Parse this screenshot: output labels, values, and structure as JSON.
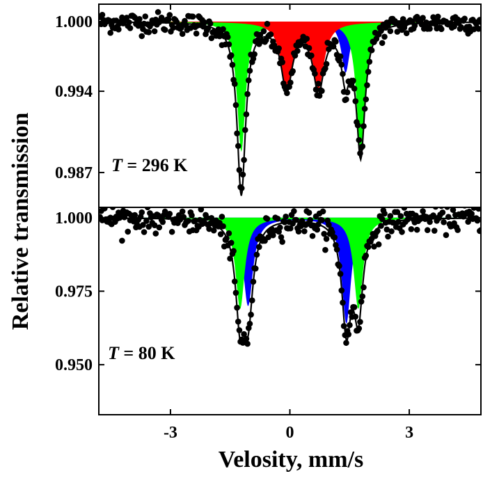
{
  "chart_data": [
    {
      "type": "scatter",
      "panel": "top",
      "annotation_symbol": "T",
      "annotation_value": " = 296 K",
      "xlabel": "",
      "ylabel": "",
      "xlim": [
        -4.8,
        4.8
      ],
      "ylim": [
        0.984,
        1.0015
      ],
      "yticks": [
        1.0,
        0.994,
        0.987
      ],
      "ytick_labels": [
        "1.000",
        "0.994",
        "0.987"
      ],
      "xticks": [
        -3,
        0,
        3
      ],
      "components": [
        {
          "color": "#0000ff",
          "peaks": [
            [
              -1.22,
              0.0036,
              0.26
            ],
            [
              1.4,
              0.0044,
              0.26
            ]
          ]
        },
        {
          "color": "#00ff00",
          "peaks": [
            [
              -1.22,
              0.0112,
              0.26
            ],
            [
              1.78,
              0.0112,
              0.26
            ]
          ]
        },
        {
          "color": "#ff0000",
          "peaks": [
            [
              -0.08,
              0.0056,
              0.34
            ],
            [
              0.72,
              0.0056,
              0.34
            ]
          ]
        }
      ],
      "fit_color": "#000000",
      "point_color": "#000000",
      "noise": 0.00045,
      "n_points": 330
    },
    {
      "type": "scatter",
      "panel": "bottom",
      "annotation_symbol": "T",
      "annotation_value": " = 80 K",
      "xlabel": "Velosity, mm/s",
      "ylabel": "",
      "xlim": [
        -4.8,
        4.8
      ],
      "ylim": [
        0.933,
        1.0035
      ],
      "yticks": [
        1.0,
        0.975,
        0.95
      ],
      "ytick_labels": [
        "1.000",
        "0.975",
        "0.950"
      ],
      "xticks": [
        -3,
        0,
        3
      ],
      "xtick_labels": [
        "-3",
        "0",
        "3"
      ],
      "components": [
        {
          "color": "#0000ff",
          "peaks": [
            [
              -1.05,
              0.03,
              0.3
            ],
            [
              1.42,
              0.036,
              0.28
            ]
          ]
        },
        {
          "color": "#00ff00",
          "peaks": [
            [
              -1.25,
              0.031,
              0.28
            ],
            [
              1.72,
              0.031,
              0.28
            ]
          ]
        }
      ],
      "fit_color": "#000000",
      "point_color": "#000000",
      "noise": 0.0022,
      "n_points": 330
    }
  ],
  "ylabel_shared": "Relative transmission"
}
